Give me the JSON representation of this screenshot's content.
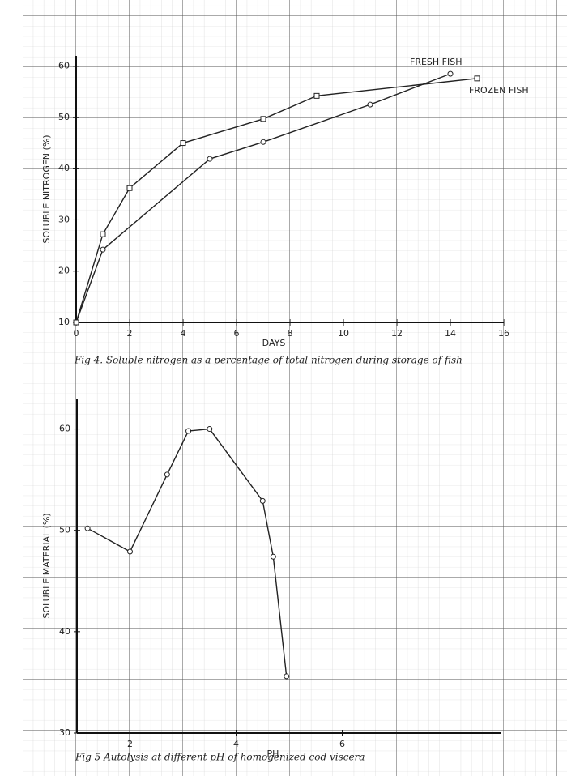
{
  "chart_data": [
    {
      "type": "line",
      "title": "Fig 4. Soluble nitrogen as a percentage of total nitrogen during storage of fish",
      "x_label": "DAYS",
      "y_label": "SOLUBLE NITROGEN (%)",
      "xlim": [
        0,
        16
      ],
      "xticks": [
        0,
        2,
        4,
        6,
        8,
        10,
        12,
        14,
        16
      ],
      "ylim": [
        10,
        62
      ],
      "yticks": [
        10,
        20,
        30,
        40,
        50,
        60
      ],
      "series": [
        {
          "name": "FRESH FISH",
          "color": "#222222",
          "marker": "circle",
          "x": [
            0,
            1,
            5,
            7,
            11,
            14
          ],
          "values": [
            10,
            24.2,
            41.9,
            45.2,
            52.5,
            58.5
          ]
        },
        {
          "name": "FROZEN FISH",
          "color": "#222222",
          "marker": "square",
          "x": [
            0,
            1,
            2,
            4,
            7,
            9,
            15
          ],
          "values": [
            10,
            27.2,
            36.2,
            45,
            49.7,
            54.2,
            57.6
          ]
        }
      ]
    },
    {
      "type": "line",
      "title": "Fig 5 Autolysis at different pH of homogenized cod viscera",
      "x_label": "PH",
      "y_label": "SOLUBLE MATERIAL (%)",
      "xlim": [
        1,
        9
      ],
      "xticks": [
        2,
        4,
        6
      ],
      "ylim": [
        30,
        63
      ],
      "yticks": [
        30,
        40,
        50,
        60
      ],
      "series": [
        {
          "color": "#222222",
          "marker": "circle",
          "x": [
            1.2,
            2.0,
            2.7,
            3.1,
            3.5,
            4.5,
            4.7,
            4.95
          ],
          "values": [
            50.2,
            47.9,
            55.5,
            59.8,
            60,
            52.9,
            47.4,
            35.6
          ]
        }
      ]
    }
  ]
}
